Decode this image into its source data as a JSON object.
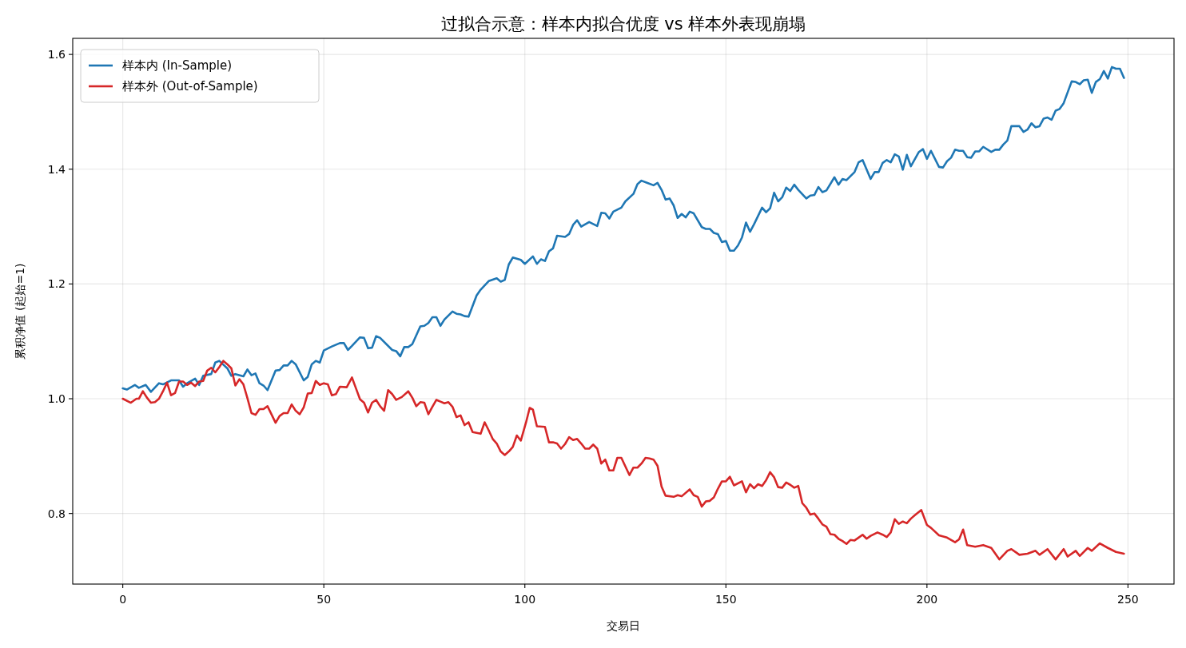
{
  "chart_data": {
    "type": "line",
    "title": "过拟合示意：样本内拟合优度 vs 样本外表现崩塌",
    "xlabel": "交易日",
    "ylabel": "累积净值 (起始=1)",
    "xlim": [
      -12.45,
      261.45
    ],
    "xticks": [
      0,
      50,
      100,
      150,
      200,
      250
    ],
    "ylim": [
      0.677,
      1.628
    ],
    "yticks": [
      0.8,
      {
        "value": 1,
        "label": "1.0"
      },
      1.2,
      1.4,
      1.6
    ],
    "grid": true,
    "legend": "top left",
    "series": [
      {
        "name": "样本内 (In-Sample)",
        "color": "#1f77b4",
        "x": [
          0,
          1,
          3,
          4,
          5.7,
          7,
          9,
          10,
          12,
          14,
          15,
          16,
          18,
          19,
          20,
          22,
          23,
          24,
          26,
          27,
          28,
          30,
          31,
          32,
          33,
          34,
          35,
          36,
          38,
          39,
          40,
          41,
          42,
          43,
          45,
          46,
          47,
          48,
          49,
          50,
          52,
          54,
          55,
          56,
          57,
          59,
          60,
          61,
          62,
          63,
          64,
          67,
          68,
          69,
          70,
          71,
          72,
          74,
          75,
          76,
          77,
          78,
          79,
          80,
          82,
          83,
          84,
          85,
          86,
          88,
          89,
          91,
          93,
          94,
          95,
          96,
          97,
          99,
          100,
          102,
          103,
          104,
          105,
          106,
          107,
          108,
          110,
          111,
          112,
          113,
          114,
          116,
          118,
          119,
          120,
          121,
          122,
          124,
          125,
          127,
          128,
          129,
          130.5,
          132,
          133,
          134,
          135,
          136,
          137,
          138,
          139,
          140,
          141,
          142,
          144,
          145,
          146,
          147,
          148,
          149,
          150,
          151,
          152,
          153,
          154,
          155,
          156,
          157,
          159,
          160,
          161,
          162,
          163,
          164,
          165,
          166,
          167,
          168,
          170,
          171,
          172,
          173,
          174,
          175,
          177,
          178,
          179,
          180,
          182,
          183,
          184,
          186,
          187,
          188,
          189,
          190,
          191,
          192,
          193,
          194,
          195,
          196,
          198,
          199,
          200,
          201,
          203,
          204,
          205,
          206,
          207,
          208,
          209,
          210,
          211,
          212,
          213,
          214,
          216,
          217,
          218,
          219,
          220,
          221,
          223,
          224,
          225,
          226,
          227,
          228,
          229,
          230,
          231,
          232,
          233,
          234,
          236,
          237,
          238,
          239,
          240,
          241,
          242,
          243,
          244,
          245,
          246,
          247,
          248,
          249
        ],
        "values": [
          1.018,
          1.016,
          1.024,
          1.019,
          1.024,
          1.012,
          1.027,
          1.025,
          1.032,
          1.032,
          1.021,
          1.027,
          1.035,
          1.024,
          1.04,
          1.043,
          1.063,
          1.066,
          1.053,
          1.04,
          1.043,
          1.039,
          1.051,
          1.041,
          1.044,
          1.027,
          1.023,
          1.015,
          1.049,
          1.05,
          1.058,
          1.058,
          1.066,
          1.06,
          1.032,
          1.038,
          1.06,
          1.066,
          1.063,
          1.084,
          1.091,
          1.097,
          1.097,
          1.085,
          1.092,
          1.107,
          1.106,
          1.088,
          1.089,
          1.109,
          1.106,
          1.085,
          1.083,
          1.074,
          1.09,
          1.09,
          1.095,
          1.126,
          1.127,
          1.132,
          1.142,
          1.142,
          1.127,
          1.138,
          1.152,
          1.148,
          1.147,
          1.144,
          1.143,
          1.18,
          1.19,
          1.205,
          1.21,
          1.204,
          1.207,
          1.234,
          1.246,
          1.242,
          1.235,
          1.248,
          1.235,
          1.243,
          1.24,
          1.257,
          1.262,
          1.284,
          1.282,
          1.287,
          1.303,
          1.311,
          1.3,
          1.308,
          1.301,
          1.324,
          1.323,
          1.314,
          1.326,
          1.333,
          1.344,
          1.357,
          1.374,
          1.38,
          1.376,
          1.372,
          1.376,
          1.364,
          1.347,
          1.349,
          1.337,
          1.315,
          1.322,
          1.316,
          1.326,
          1.323,
          1.299,
          1.296,
          1.296,
          1.289,
          1.287,
          1.273,
          1.275,
          1.258,
          1.258,
          1.267,
          1.281,
          1.307,
          1.291,
          1.304,
          1.333,
          1.325,
          1.332,
          1.359,
          1.344,
          1.351,
          1.368,
          1.362,
          1.373,
          1.364,
          1.349,
          1.354,
          1.355,
          1.369,
          1.36,
          1.363,
          1.386,
          1.373,
          1.383,
          1.381,
          1.395,
          1.412,
          1.416,
          1.383,
          1.395,
          1.395,
          1.411,
          1.416,
          1.412,
          1.426,
          1.422,
          1.399,
          1.425,
          1.405,
          1.43,
          1.435,
          1.418,
          1.432,
          1.404,
          1.403,
          1.414,
          1.42,
          1.434,
          1.432,
          1.432,
          1.421,
          1.42,
          1.431,
          1.431,
          1.439,
          1.43,
          1.434,
          1.434,
          1.443,
          1.45,
          1.475,
          1.475,
          1.465,
          1.469,
          1.48,
          1.473,
          1.475,
          1.488,
          1.49,
          1.486,
          1.502,
          1.505,
          1.515,
          1.553,
          1.552,
          1.548,
          1.555,
          1.556,
          1.533,
          1.552,
          1.557,
          1.571,
          1.558,
          1.578,
          1.575,
          1.575,
          1.559
        ]
      },
      {
        "name": "样本外 (Out-of-Sample)",
        "color": "#d62728",
        "x": [
          0,
          2,
          3.4,
          4,
          5,
          6,
          7,
          8,
          9,
          10,
          11,
          12,
          13,
          14,
          15,
          16,
          17,
          18,
          19,
          20,
          21,
          22,
          23,
          24,
          25,
          26,
          27,
          28,
          29,
          30,
          31,
          32,
          33,
          34,
          35,
          36,
          38,
          39,
          40,
          41,
          42,
          43,
          44,
          45,
          46,
          47,
          48,
          49,
          50,
          51,
          52,
          53,
          54,
          55.7,
          57,
          58,
          59,
          60,
          61,
          62,
          63,
          64,
          65,
          66,
          67,
          68,
          69.4,
          71,
          72,
          73,
          74,
          75,
          76,
          77,
          78,
          79,
          80,
          81,
          82,
          83,
          84,
          85,
          86,
          87,
          89,
          90,
          91,
          92,
          93,
          94,
          95,
          96,
          97,
          98,
          99,
          100.3,
          101.2,
          102,
          103,
          105,
          106,
          107,
          108,
          109,
          110,
          111,
          112,
          113,
          114,
          115,
          116,
          117,
          118,
          119,
          120,
          121,
          122,
          123,
          124,
          126,
          127,
          128,
          129,
          130,
          131,
          132,
          133,
          134,
          135,
          137,
          138,
          139,
          141,
          142,
          143,
          144,
          145,
          146,
          147,
          148,
          149,
          150,
          151,
          152,
          154,
          155,
          156,
          157,
          158,
          159,
          160,
          161,
          162,
          163,
          164,
          165,
          166,
          167,
          168,
          169,
          170,
          171,
          172,
          173,
          174,
          175,
          176,
          177,
          178,
          179,
          180,
          181,
          182,
          183,
          184,
          185,
          186,
          187.7,
          189,
          190,
          191,
          192,
          193,
          194,
          195,
          196,
          197,
          198.6,
          200,
          201,
          203,
          205,
          207,
          208,
          209,
          210,
          212,
          214,
          216,
          218,
          220,
          221,
          223,
          225,
          227,
          228,
          230,
          232,
          234,
          235,
          237,
          238,
          240,
          241,
          243,
          245,
          247,
          249
        ],
        "values": [
          1.0,
          0.993,
          1.0,
          1.0,
          1.013,
          1.002,
          0.993,
          0.994,
          1.0,
          1.013,
          1.028,
          1.006,
          1.01,
          1.03,
          1.03,
          1.024,
          1.028,
          1.022,
          1.03,
          1.031,
          1.049,
          1.054,
          1.046,
          1.055,
          1.066,
          1.06,
          1.053,
          1.023,
          1.034,
          1.025,
          1.001,
          0.975,
          0.972,
          0.982,
          0.982,
          0.987,
          0.958,
          0.97,
          0.975,
          0.975,
          0.99,
          0.979,
          0.973,
          0.985,
          1.009,
          1.01,
          1.031,
          1.024,
          1.027,
          1.025,
          1.006,
          1.008,
          1.021,
          1.02,
          1.037,
          1.018,
          0.999,
          0.993,
          0.976,
          0.993,
          0.998,
          0.987,
          0.979,
          1.015,
          1.008,
          0.998,
          1.003,
          1.013,
          1.002,
          0.987,
          0.994,
          0.993,
          0.973,
          0.986,
          0.998,
          0.995,
          0.992,
          0.994,
          0.986,
          0.968,
          0.971,
          0.954,
          0.959,
          0.942,
          0.939,
          0.959,
          0.945,
          0.93,
          0.922,
          0.908,
          0.902,
          0.908,
          0.916,
          0.936,
          0.927,
          0.959,
          0.984,
          0.981,
          0.952,
          0.951,
          0.924,
          0.924,
          0.922,
          0.913,
          0.921,
          0.933,
          0.928,
          0.93,
          0.922,
          0.913,
          0.913,
          0.92,
          0.913,
          0.887,
          0.894,
          0.875,
          0.875,
          0.897,
          0.897,
          0.867,
          0.88,
          0.88,
          0.887,
          0.897,
          0.896,
          0.894,
          0.883,
          0.847,
          0.831,
          0.829,
          0.832,
          0.83,
          0.842,
          0.832,
          0.829,
          0.812,
          0.821,
          0.822,
          0.828,
          0.843,
          0.856,
          0.856,
          0.864,
          0.849,
          0.856,
          0.837,
          0.851,
          0.844,
          0.851,
          0.848,
          0.858,
          0.872,
          0.863,
          0.846,
          0.845,
          0.854,
          0.85,
          0.845,
          0.848,
          0.818,
          0.81,
          0.798,
          0.8,
          0.791,
          0.781,
          0.777,
          0.764,
          0.763,
          0.756,
          0.752,
          0.747,
          0.754,
          0.753,
          0.758,
          0.763,
          0.756,
          0.761,
          0.767,
          0.763,
          0.759,
          0.767,
          0.79,
          0.782,
          0.786,
          0.783,
          0.791,
          0.797,
          0.806,
          0.78,
          0.775,
          0.762,
          0.758,
          0.75,
          0.755,
          0.772,
          0.745,
          0.742,
          0.745,
          0.74,
          0.72,
          0.735,
          0.738,
          0.728,
          0.73,
          0.735,
          0.728,
          0.738,
          0.72,
          0.738,
          0.725,
          0.735,
          0.726,
          0.74,
          0.735,
          0.748,
          0.74,
          0.733,
          0.73
        ]
      }
    ]
  }
}
